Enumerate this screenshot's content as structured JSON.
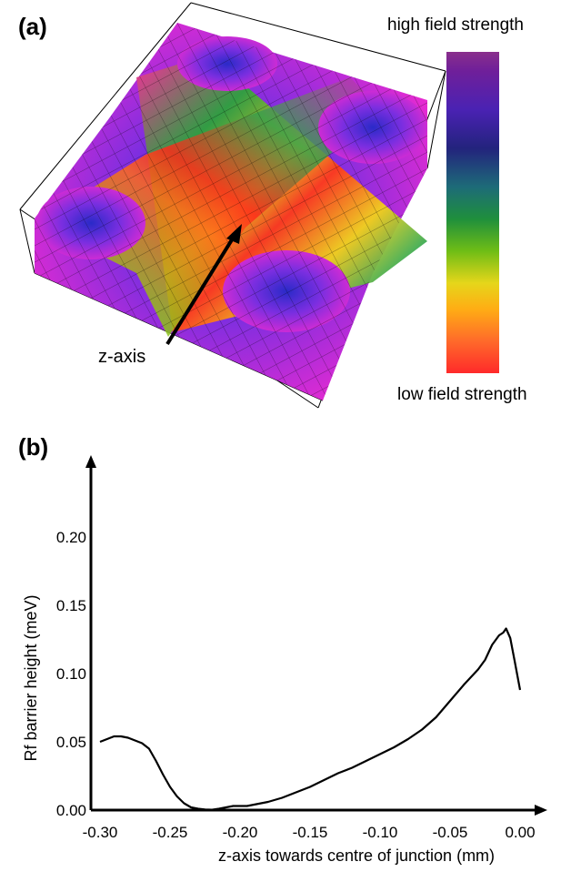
{
  "panel_a": {
    "label": "(a)",
    "colorbar_high": "high field strength",
    "colorbar_low": "low field strength",
    "arrow_label": "z-axis",
    "colorbar_colors": [
      "#8a2f8c",
      "#4a22b3",
      "#23237d",
      "#1f8f3c",
      "#6fbd16",
      "#e6d61a",
      "#ffad14",
      "#ff2a2a"
    ]
  },
  "panel_b": {
    "label": "(b)"
  },
  "chart_data": {
    "type": "line",
    "title": "",
    "xlabel": "z-axis towards centre of junction (mm)",
    "ylabel": "Rf barrier height (meV)",
    "xlim": [
      -0.3,
      0.0
    ],
    "ylim": [
      0.0,
      0.22
    ],
    "xticks": [
      "-0.30",
      "-0.25",
      "-0.20",
      "-0.15",
      "-0.10",
      "-0.05",
      "0.00"
    ],
    "yticks": [
      "0.00",
      "0.05",
      "0.10",
      "0.15",
      "0.20"
    ],
    "grid": false,
    "legend": "none",
    "series": [
      {
        "color": "#000000",
        "x": [
          -0.3,
          -0.295,
          -0.29,
          -0.285,
          -0.28,
          -0.275,
          -0.27,
          -0.265,
          -0.26,
          -0.255,
          -0.25,
          -0.245,
          -0.24,
          -0.235,
          -0.23,
          -0.225,
          -0.22,
          -0.215,
          -0.21,
          -0.205,
          -0.2,
          -0.195,
          -0.19,
          -0.18,
          -0.17,
          -0.16,
          -0.15,
          -0.14,
          -0.13,
          -0.12,
          -0.11,
          -0.1,
          -0.09,
          -0.08,
          -0.07,
          -0.06,
          -0.05,
          -0.04,
          -0.03,
          -0.025,
          -0.02,
          -0.015,
          -0.012,
          -0.01,
          -0.007,
          -0.004,
          0.0
        ],
        "y": [
          0.05,
          0.052,
          0.054,
          0.054,
          0.053,
          0.051,
          0.049,
          0.045,
          0.036,
          0.026,
          0.017,
          0.01,
          0.005,
          0.002,
          0.001,
          0.0005,
          0.0003,
          0.001,
          0.002,
          0.003,
          0.003,
          0.003,
          0.004,
          0.006,
          0.009,
          0.013,
          0.017,
          0.022,
          0.027,
          0.031,
          0.036,
          0.041,
          0.046,
          0.052,
          0.059,
          0.068,
          0.08,
          0.092,
          0.103,
          0.11,
          0.121,
          0.128,
          0.13,
          0.133,
          0.126,
          0.11,
          0.088
        ]
      }
    ]
  }
}
